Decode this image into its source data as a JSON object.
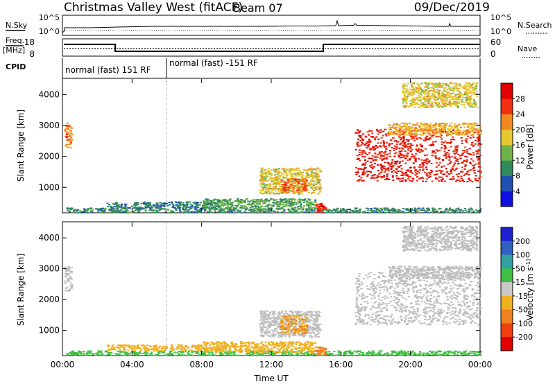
{
  "header": {
    "station": "Christmas Valley West (fitACF)",
    "beam": "Beam 07",
    "date": "09/Dec/2019"
  },
  "noise_panel": {
    "left_label": "N.Sky",
    "right_label": "N.Search",
    "left_ticks": [
      "10^5",
      "10^0"
    ],
    "right_ticks": [
      "10^5",
      "10^0"
    ]
  },
  "freq_panel": {
    "left_label_1": "Freq.",
    "left_label_2": "[MHz]",
    "right_label": "Nave",
    "left_ticks": [
      "18",
      "8"
    ],
    "right_ticks": [
      "60",
      "0"
    ]
  },
  "cpid_panel": {
    "label": "CPID",
    "segments": [
      "normal (fast) 151 RF",
      "normal (fast) -151 RF"
    ]
  },
  "colors": {
    "power": [
      "#1010e0",
      "#2050b0",
      "#2f8a5c",
      "#6fb24a",
      "#e6c830",
      "#f08a20",
      "#f03010",
      "#e00000"
    ],
    "velocity": [
      "#2020d0",
      "#3060c0",
      "#30a0a0",
      "#40c040",
      "#c8c8c8",
      "#f0b020",
      "#f08020",
      "#f04010",
      "#e00000"
    ],
    "ground_scatter": "#bdbdbd"
  },
  "chart_data": [
    {
      "type": "heatmap",
      "title": "",
      "ylabel": "Slant Range [km]",
      "xlabel": "",
      "x_ticks": [
        "00:00",
        "04:00",
        "08:00",
        "12:00",
        "16:00",
        "20:00",
        "00:00"
      ],
      "y_ticks": [
        1000,
        2000,
        3000,
        4000
      ],
      "ylim": [
        200,
        4500
      ],
      "xlim_hours": [
        0,
        24
      ],
      "colorbar": {
        "label": "Power [dB]",
        "ticks": [
          4,
          8,
          12,
          16,
          20,
          24,
          28
        ],
        "range": [
          0,
          32
        ]
      },
      "regions": [
        {
          "t": [
            0.1,
            0.5
          ],
          "r": [
            2300,
            3100
          ],
          "value": 22
        },
        {
          "t": [
            0.2,
            24
          ],
          "r": [
            200,
            350
          ],
          "value": 10
        },
        {
          "t": [
            2.5,
            9
          ],
          "r": [
            350,
            550
          ],
          "value": 9
        },
        {
          "t": [
            8,
            14.5
          ],
          "r": [
            300,
            650
          ],
          "value": 12
        },
        {
          "t": [
            11.3,
            14.8
          ],
          "r": [
            800,
            1650
          ],
          "value": 18
        },
        {
          "t": [
            12.5,
            14
          ],
          "r": [
            900,
            1300
          ],
          "value": 24
        },
        {
          "t": [
            14.5,
            15.1
          ],
          "r": [
            200,
            500
          ],
          "value": 28
        },
        {
          "t": [
            16.8,
            24
          ],
          "r": [
            1200,
            2900
          ],
          "value": 28
        },
        {
          "t": [
            18.7,
            24
          ],
          "r": [
            2700,
            3100
          ],
          "value": 20
        },
        {
          "t": [
            19.5,
            23.8
          ],
          "r": [
            3600,
            4400
          ],
          "value": 18
        }
      ]
    },
    {
      "type": "heatmap",
      "title": "",
      "ylabel": "Slant Range [km]",
      "xlabel": "Time UT",
      "x_ticks": [
        "00:00",
        "04:00",
        "08:00",
        "12:00",
        "16:00",
        "20:00",
        "00:00"
      ],
      "y_ticks": [
        1000,
        2000,
        3000,
        4000
      ],
      "ylim": [
        200,
        4500
      ],
      "xlim_hours": [
        0,
        24
      ],
      "colorbar": {
        "label": "Velocity [m s^-1]",
        "ticks": [
          200,
          100,
          50,
          15,
          -15,
          -50,
          -100,
          -200
        ]
      },
      "regions": [
        {
          "t": [
            0.1,
            0.5
          ],
          "r": [
            2300,
            3100
          ],
          "value": 0
        },
        {
          "t": [
            0.2,
            24
          ],
          "r": [
            200,
            350
          ],
          "value": 30
        },
        {
          "t": [
            2.5,
            9
          ],
          "r": [
            350,
            550
          ],
          "value": -30
        },
        {
          "t": [
            8,
            14.5
          ],
          "r": [
            300,
            650
          ],
          "value": -40
        },
        {
          "t": [
            11.3,
            14.8
          ],
          "r": [
            800,
            1650
          ],
          "value": 0
        },
        {
          "t": [
            12.5,
            14
          ],
          "r": [
            900,
            1500
          ],
          "value": -50
        },
        {
          "t": [
            14.5,
            15.1
          ],
          "r": [
            200,
            500
          ],
          "value": -80
        },
        {
          "t": [
            16.8,
            24
          ],
          "r": [
            1200,
            2900
          ],
          "value": 0
        },
        {
          "t": [
            18.7,
            24
          ],
          "r": [
            2700,
            3100
          ],
          "value": 0
        },
        {
          "t": [
            19.5,
            23.8
          ],
          "r": [
            3600,
            4400
          ],
          "value": 0
        }
      ]
    }
  ]
}
